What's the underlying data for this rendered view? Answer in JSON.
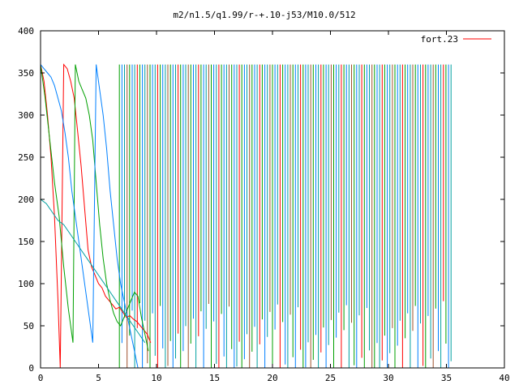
{
  "chart_data": {
    "type": "line",
    "title": "m2/n1.5/q1.99/r-+.10-j53/M10.0/512",
    "xlabel": "",
    "ylabel": "",
    "xlim": [
      0,
      40
    ],
    "ylim": [
      0,
      400
    ],
    "x_ticks": [
      0,
      5,
      10,
      15,
      20,
      25,
      30,
      35,
      40
    ],
    "y_ticks": [
      0,
      50,
      100,
      150,
      200,
      250,
      300,
      350,
      400
    ],
    "x_tick_labels": [
      "0",
      "5",
      "10",
      "15",
      "20",
      "25",
      "30",
      "35",
      "40"
    ],
    "y_tick_labels": [
      "0",
      "50",
      "100",
      "150",
      "200",
      "250",
      "300",
      "350",
      "400"
    ],
    "grid": false,
    "legend_position": "top-right",
    "legend": [
      {
        "label": "fort.23",
        "color": "#ff0000"
      }
    ],
    "series": [
      {
        "color": "#ff0000",
        "x": [
          0.0,
          0.3,
          0.6,
          0.9,
          1.2,
          1.5,
          1.7,
          2.0,
          2.3,
          2.6,
          2.9,
          3.2,
          3.5,
          3.8,
          4.1,
          4.4,
          4.7,
          5.0,
          5.3,
          5.6,
          5.9,
          6.2,
          6.5,
          6.8,
          7.1,
          7.4,
          7.7,
          8.0,
          8.3,
          8.6,
          8.9,
          9.2,
          9.5
        ],
        "y": [
          360,
          340,
          300,
          250,
          180,
          80,
          0,
          360,
          355,
          340,
          320,
          280,
          240,
          190,
          140,
          120,
          110,
          100,
          95,
          85,
          80,
          75,
          70,
          72,
          66,
          60,
          62,
          58,
          55,
          50,
          45,
          40,
          30
        ]
      },
      {
        "color": "#00a000",
        "x": [
          0.0,
          0.4,
          0.8,
          1.2,
          1.6,
          2.0,
          2.4,
          2.8,
          3.0,
          3.3,
          3.6,
          3.9,
          4.2,
          4.5,
          4.8,
          5.1,
          5.4,
          5.7,
          6.0,
          6.3,
          6.6,
          6.9,
          7.2,
          7.5,
          7.8,
          8.1,
          8.4,
          8.7,
          9.0,
          9.3
        ],
        "y": [
          360,
          320,
          270,
          220,
          180,
          120,
          70,
          30,
          360,
          340,
          330,
          320,
          300,
          270,
          220,
          170,
          130,
          100,
          80,
          65,
          55,
          50,
          60,
          70,
          80,
          90,
          85,
          60,
          40,
          20
        ]
      },
      {
        "color": "#0080ff",
        "x": [
          0.0,
          0.3,
          0.6,
          0.9,
          1.2,
          1.5,
          1.8,
          2.1,
          2.4,
          2.7,
          3.0,
          3.3,
          3.6,
          3.9,
          4.2,
          4.5,
          4.8,
          5.1,
          5.4,
          5.7,
          6.0,
          6.3,
          6.6,
          6.9,
          7.2,
          7.5,
          7.8,
          8.1,
          8.4
        ],
        "y": [
          360,
          355,
          350,
          345,
          335,
          320,
          305,
          280,
          250,
          210,
          180,
          150,
          120,
          90,
          60,
          30,
          360,
          330,
          300,
          260,
          210,
          170,
          130,
          100,
          80,
          60,
          40,
          20,
          0
        ]
      },
      {
        "color": "#00a0a0",
        "x": [
          0.0,
          0.5,
          1.0,
          1.5,
          2.0,
          2.5,
          3.0,
          3.5,
          4.0,
          4.5,
          5.0,
          5.5,
          6.0,
          6.5,
          7.0,
          7.5,
          8.0,
          8.5,
          9.0
        ],
        "y": [
          200,
          195,
          185,
          175,
          170,
          160,
          150,
          140,
          130,
          120,
          110,
          100,
          90,
          80,
          70,
          60,
          50,
          40,
          30
        ]
      }
    ]
  },
  "osc": {
    "start": 6.8,
    "end": 35.5,
    "step": 0.22,
    "ymin": 0,
    "ymax": 360,
    "colors": [
      "#00a000",
      "#0080ff",
      "#00a0a0",
      "#a0522d",
      "#00a000",
      "#0080ff",
      "#00a0a0",
      "#ff0000"
    ]
  }
}
